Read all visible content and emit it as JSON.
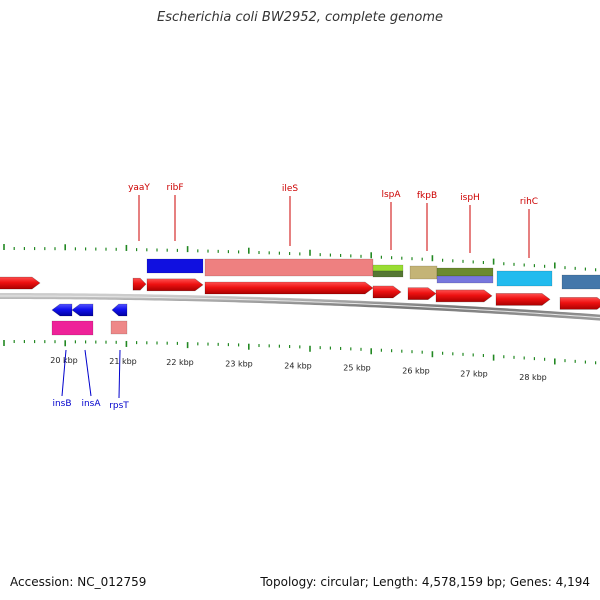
{
  "title": "Escherichia coli BW2952, complete genome",
  "footer": {
    "accession": "Accession: NC_012759",
    "summary": "Topology: circular; Length: 4,578,159 bp; Genes: 4,194"
  },
  "colors": {
    "forward_gene": "#ee1111",
    "reverse_gene": "#1111ee",
    "forward_label": "#cc0000",
    "reverse_label": "#0000cc",
    "tick": "#228822",
    "backbone": "#777777"
  },
  "kbp_labels": [
    "20 kbp",
    "21 kbp",
    "22 kbp",
    "23 kbp",
    "24 kbp",
    "25 kbp",
    "26 kbp",
    "27 kbp",
    "28 kbp"
  ],
  "forward_gene_labels": [
    "yaaY",
    "ribF",
    "ileS",
    "lspA",
    "fkpB",
    "ispH",
    "rihC"
  ],
  "reverse_gene_labels": [
    "insB",
    "insA",
    "rpsT"
  ]
}
